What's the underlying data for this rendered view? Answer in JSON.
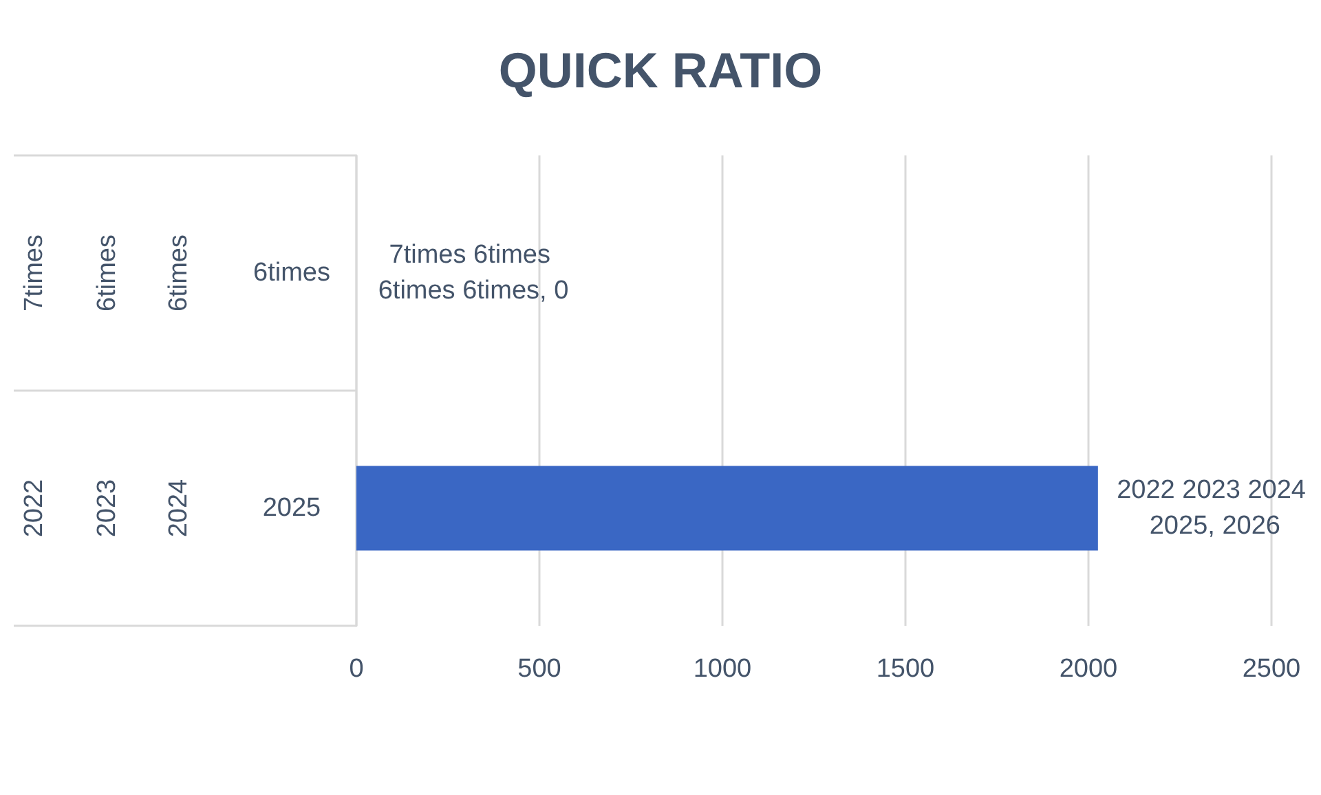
{
  "chart_data": {
    "type": "bar",
    "orientation": "horizontal",
    "title": "QUICK RATIO",
    "categories": [
      "7times 6times 6times 6times",
      "2022 2023 2024 2025"
    ],
    "values": [
      0,
      2026
    ],
    "value_labels": [
      "7times 6times 6times 6times, 0",
      "2022 2023 2024 2025, 2026"
    ],
    "color": "#3a67c4",
    "xlim": [
      0,
      2500
    ],
    "xticks": [
      0,
      500,
      1000,
      1500,
      2000,
      2500
    ],
    "grid": "x"
  }
}
